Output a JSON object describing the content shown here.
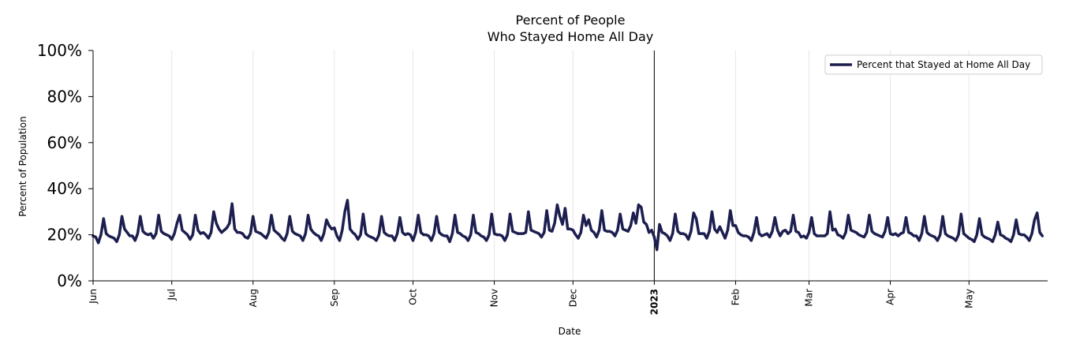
{
  "chart_data": {
    "type": "line",
    "title_lines": [
      "Percent of People",
      "Who Stayed Home All Day"
    ],
    "xlabel": "Date",
    "ylabel": "Percent of Population",
    "ylim": [
      0,
      100
    ],
    "y_ticks": [
      {
        "value": 0,
        "label": "0%"
      },
      {
        "value": 20,
        "label": "20%"
      },
      {
        "value": 40,
        "label": "40%"
      },
      {
        "value": 60,
        "label": "60%"
      },
      {
        "value": 80,
        "label": "80%"
      },
      {
        "value": 100,
        "label": "100%"
      }
    ],
    "x_start": "2022-06-01",
    "x_end": "2023-05-31",
    "x_ticks": [
      {
        "date": "2022-06-01",
        "label": "Jun",
        "bold": false
      },
      {
        "date": "2022-07-01",
        "label": "Jul",
        "bold": false
      },
      {
        "date": "2022-08-01",
        "label": "Aug",
        "bold": false
      },
      {
        "date": "2022-09-01",
        "label": "Sep",
        "bold": false
      },
      {
        "date": "2022-10-01",
        "label": "Oct",
        "bold": false
      },
      {
        "date": "2022-11-01",
        "label": "Nov",
        "bold": false
      },
      {
        "date": "2022-12-01",
        "label": "Dec",
        "bold": false
      },
      {
        "date": "2023-01-01",
        "label": "2023",
        "bold": true
      },
      {
        "date": "2023-02-01",
        "label": "Feb",
        "bold": false
      },
      {
        "date": "2023-03-01",
        "label": "Mar",
        "bold": false
      },
      {
        "date": "2023-04-01",
        "label": "Apr",
        "bold": false
      },
      {
        "date": "2023-05-01",
        "label": "May",
        "bold": false
      }
    ],
    "year_marker": "2023-01-01",
    "legend": {
      "label": "Percent that Stayed at Home All Day",
      "position": "top-right"
    },
    "series": [
      {
        "name": "Percent that Stayed at Home All Day",
        "color": "#1c1e4f",
        "start_date": "2022-06-01",
        "step_days": 1,
        "values": [
          19.5,
          19.0,
          16.5,
          20.0,
          27.0,
          20.5,
          19.5,
          19.0,
          18.5,
          17.0,
          20.0,
          28.0,
          22.5,
          21.0,
          19.5,
          19.5,
          17.5,
          20.5,
          28.0,
          21.5,
          20.5,
          20.0,
          20.5,
          18.5,
          20.5,
          28.5,
          21.5,
          20.5,
          20.0,
          19.5,
          18.0,
          20.5,
          25.0,
          28.5,
          22.0,
          21.0,
          20.0,
          18.0,
          20.0,
          28.5,
          22.0,
          20.5,
          21.0,
          20.0,
          18.5,
          21.0,
          30.0,
          25.0,
          22.5,
          21.0,
          22.0,
          23.0,
          25.0,
          33.5,
          22.5,
          21.0,
          21.0,
          20.5,
          19.0,
          18.5,
          20.5,
          28.0,
          21.5,
          21.0,
          20.5,
          19.5,
          18.5,
          21.0,
          28.5,
          22.0,
          21.0,
          20.0,
          18.5,
          17.5,
          20.5,
          28.0,
          21.5,
          20.5,
          20.0,
          19.5,
          17.5,
          20.5,
          28.5,
          22.5,
          21.0,
          20.0,
          19.5,
          17.5,
          20.5,
          26.5,
          24.0,
          22.5,
          23.0,
          19.5,
          17.5,
          22.0,
          30.0,
          35.0,
          22.5,
          21.0,
          20.0,
          18.0,
          20.0,
          29.0,
          20.5,
          19.5,
          19.0,
          18.5,
          17.5,
          20.0,
          28.0,
          21.0,
          20.0,
          19.5,
          19.5,
          17.5,
          20.5,
          27.5,
          21.0,
          20.0,
          20.5,
          20.0,
          17.5,
          21.0,
          28.5,
          21.0,
          20.0,
          20.0,
          19.5,
          17.5,
          20.5,
          28.0,
          21.0,
          20.0,
          19.5,
          19.5,
          17.0,
          20.5,
          28.5,
          21.0,
          20.5,
          19.5,
          19.0,
          17.5,
          20.0,
          28.5,
          21.0,
          20.5,
          19.5,
          19.0,
          17.5,
          20.0,
          29.0,
          20.5,
          20.0,
          20.0,
          19.5,
          17.5,
          20.0,
          29.0,
          21.5,
          21.0,
          20.5,
          20.5,
          20.5,
          21.0,
          30.0,
          22.0,
          21.5,
          21.0,
          20.5,
          19.0,
          21.0,
          30.5,
          22.0,
          21.5,
          25.0,
          33.0,
          28.0,
          24.5,
          31.5,
          22.5,
          22.5,
          22.0,
          20.0,
          18.5,
          21.0,
          28.5,
          24.0,
          26.5,
          22.0,
          21.0,
          19.0,
          22.0,
          30.5,
          22.0,
          21.5,
          21.5,
          21.0,
          19.5,
          22.0,
          29.0,
          22.5,
          22.0,
          21.5,
          24.0,
          29.5,
          25.0,
          33.0,
          32.0,
          25.5,
          24.5,
          21.0,
          22.0,
          19.0,
          13.5,
          24.5,
          21.0,
          20.5,
          19.5,
          17.5,
          20.5,
          29.0,
          21.5,
          20.5,
          20.5,
          20.0,
          18.0,
          21.5,
          29.5,
          27.0,
          20.5,
          20.5,
          20.5,
          18.5,
          21.5,
          30.0,
          22.5,
          21.0,
          23.5,
          21.0,
          18.5,
          22.0,
          30.5,
          24.0,
          24.0,
          21.0,
          20.0,
          19.5,
          19.5,
          19.0,
          17.5,
          21.0,
          27.5,
          20.5,
          19.5,
          20.0,
          20.5,
          19.0,
          21.5,
          27.5,
          22.0,
          19.5,
          21.5,
          22.0,
          20.5,
          21.5,
          28.5,
          21.5,
          21.0,
          19.0,
          19.5,
          18.5,
          21.0,
          27.5,
          20.5,
          19.5,
          19.5,
          19.5,
          19.5,
          20.5,
          30.0,
          22.0,
          22.5,
          20.0,
          19.5,
          18.5,
          21.0,
          28.5,
          22.0,
          21.5,
          21.0,
          20.0,
          19.5,
          19.0,
          21.0,
          28.5,
          21.5,
          20.5,
          20.0,
          19.5,
          19.0,
          21.5,
          27.5,
          20.5,
          20.0,
          20.5,
          19.5,
          20.5,
          21.0,
          27.5,
          21.0,
          20.5,
          19.5,
          19.5,
          17.5,
          20.5,
          28.0,
          21.0,
          20.0,
          19.5,
          19.0,
          17.5,
          20.0,
          28.0,
          20.5,
          19.5,
          19.0,
          18.5,
          17.5,
          20.0,
          29.0,
          20.5,
          19.5,
          18.5,
          18.0,
          17.0,
          20.0,
          27.0,
          20.0,
          19.0,
          18.5,
          18.0,
          17.0,
          20.0,
          25.5,
          20.0,
          19.5,
          18.5,
          18.0,
          17.0,
          20.0,
          26.5,
          20.5,
          20.0,
          20.0,
          19.0,
          17.5,
          20.5,
          26.5,
          29.5,
          21.0,
          19.5
        ]
      }
    ]
  }
}
